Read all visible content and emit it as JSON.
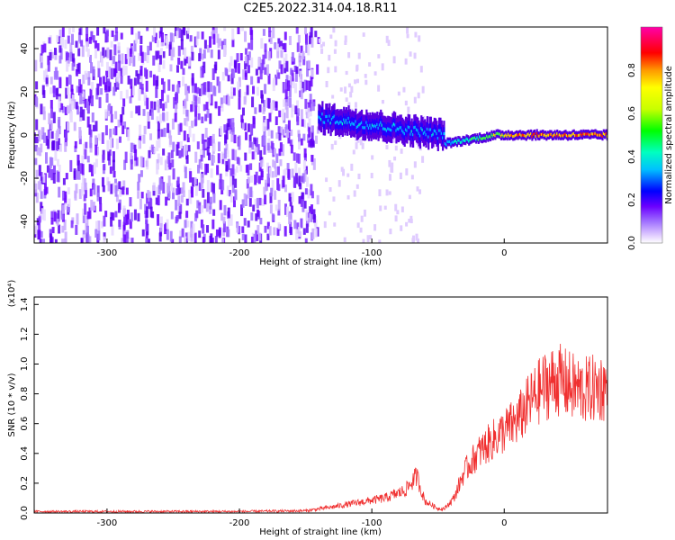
{
  "title": "C2E5.2022.314.04.18.R11",
  "chart_data": [
    {
      "type": "heatmap",
      "xlabel": "Height of straight line (km)",
      "ylabel": "Frequency (Hz)",
      "xlim": [
        -355,
        78
      ],
      "ylim": [
        -50,
        50
      ],
      "xticks": [
        -300,
        -200,
        -100,
        0
      ],
      "yticks": [
        -40,
        -20,
        0,
        20,
        40
      ],
      "xtick_labels": [
        "-300",
        "-200",
        "-100",
        "0"
      ],
      "ytick_labels": [
        "-40",
        "-20",
        "0",
        "20",
        "40"
      ],
      "colorbar": {
        "label": "Normalized spectral amplitude",
        "range": [
          0,
          1
        ],
        "ticks": [
          0.0,
          0.2,
          0.4,
          0.6,
          0.8
        ],
        "tick_labels": [
          "0.0",
          "0.2",
          "0.4",
          "0.6",
          "0.8"
        ],
        "colors": [
          "#ffffff",
          "#dcc6ff",
          "#a070ff",
          "#6a00ff",
          "#0000ff",
          "#00c0ff",
          "#00ffc0",
          "#00ff00",
          "#c8ff00",
          "#ffff00",
          "#ff9900",
          "#ff0000",
          "#ff00aa"
        ]
      },
      "regions": [
        {
          "x_range": [
            -355,
            -140
          ],
          "frequency_range": [
            -50,
            50
          ],
          "amplitude": "noise ~0.05"
        },
        {
          "x_range": [
            -140,
            -45
          ],
          "frequency_center": [
            8,
            0
          ],
          "amplitude": "0.1-0.3"
        },
        {
          "x_range": [
            -45,
            78
          ],
          "frequency_center": [
            -4,
            0
          ],
          "amplitude": "up to 0.95"
        }
      ],
      "grid": false
    },
    {
      "type": "line",
      "xlabel": "Height of straight line (km)",
      "ylabel": "SNR (10 * v/v)",
      "y_scale_label": "(x10⁴)",
      "xlim": [
        -355,
        78
      ],
      "ylim": [
        0,
        1.45
      ],
      "xticks": [
        -300,
        -200,
        -100,
        0
      ],
      "yticks": [
        0.0,
        0.2,
        0.4,
        0.6,
        0.8,
        1.0,
        1.2,
        1.4
      ],
      "xtick_labels": [
        "-300",
        "-200",
        "-100",
        "0"
      ],
      "ytick_labels": [
        "0.0",
        "0.2",
        "0.4",
        "0.6",
        "0.8",
        "1.0",
        "1.2",
        "1.4"
      ],
      "color": "#f03030",
      "x": [
        -355,
        -300,
        -250,
        -200,
        -150,
        -130,
        -110,
        -90,
        -75,
        -66,
        -60,
        -50,
        -45,
        -38,
        -30,
        -20,
        -10,
        0,
        10,
        20,
        30,
        40,
        50,
        60,
        70,
        78
      ],
      "y": [
        0.01,
        0.01,
        0.01,
        0.01,
        0.015,
        0.04,
        0.07,
        0.1,
        0.15,
        0.25,
        0.08,
        0.03,
        0.03,
        0.1,
        0.28,
        0.4,
        0.48,
        0.55,
        0.62,
        0.75,
        0.85,
        0.9,
        0.85,
        0.82,
        0.84,
        0.85
      ],
      "grid": false
    }
  ]
}
